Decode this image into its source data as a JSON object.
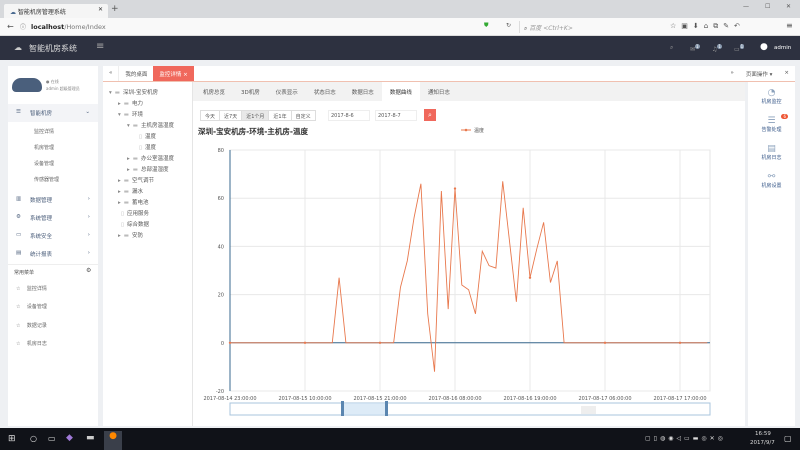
{
  "browser": {
    "tab_title": "智能机房管理系统",
    "url_host": "localhost",
    "url_path": "/Home/Index",
    "search_placeholder": "百度 <Ctrl+K>"
  },
  "header": {
    "app_title": "智能机房系统",
    "user": "admin",
    "badges": [
      "1",
      "1",
      "1"
    ]
  },
  "sidebar": {
    "profile": {
      "status": "● 在线",
      "name": "admin 超级管理员"
    },
    "groups": [
      {
        "label": "智能机房",
        "expanded": true,
        "children": [
          "监控详情",
          "机房管理",
          "设备管理",
          "传感器管理"
        ]
      },
      {
        "label": "数据管理"
      },
      {
        "label": "系统管理"
      },
      {
        "label": "系统安全"
      },
      {
        "label": "统计报表"
      }
    ],
    "favorites_title": "常用菜单",
    "favorites": [
      "监控详情",
      "设备管理",
      "数据记录",
      "机房日志"
    ]
  },
  "page_tabs": {
    "items": [
      "我的桌面",
      "监控详情"
    ],
    "active": 1,
    "page_ops": "页面操作"
  },
  "tree": [
    {
      "label": "深圳-宝安机房",
      "level": 0,
      "type": "folder-open"
    },
    {
      "label": "电力",
      "level": 1,
      "type": "folder"
    },
    {
      "label": "环境",
      "level": 1,
      "type": "folder-open"
    },
    {
      "label": "主机房温湿度",
      "level": 2,
      "type": "folder-open"
    },
    {
      "label": "温度",
      "level": 3,
      "type": "file"
    },
    {
      "label": "湿度",
      "level": 3,
      "type": "file"
    },
    {
      "label": "办公室温湿度",
      "level": 2,
      "type": "folder"
    },
    {
      "label": "总部温湿度",
      "level": 2,
      "type": "folder"
    },
    {
      "label": "空气调节",
      "level": 1,
      "type": "folder"
    },
    {
      "label": "漏水",
      "level": 1,
      "type": "folder"
    },
    {
      "label": "蓄电池",
      "level": 1,
      "type": "folder"
    },
    {
      "label": "应用服务",
      "level": 1,
      "type": "file"
    },
    {
      "label": "综合数据",
      "level": 1,
      "type": "file"
    },
    {
      "label": "安防",
      "level": 1,
      "type": "folder"
    }
  ],
  "sub_tabs": {
    "items": [
      "机房总览",
      "3D机房",
      "仪表显示",
      "状态日志",
      "数据日志",
      "数据曲线",
      "通知日志"
    ],
    "active": 5
  },
  "filters": {
    "ranges": [
      "今天",
      "近7天",
      "近1个月",
      "近1年",
      "自定义"
    ],
    "active": 2,
    "start_date": "2017-8-6",
    "end_date": "2017-8-7"
  },
  "right_panel": [
    {
      "label": "机房监控",
      "icon": "pie-chart-icon"
    },
    {
      "label": "告警处理",
      "icon": "list-icon",
      "badge": "6"
    },
    {
      "label": "机房日志",
      "icon": "database-icon"
    },
    {
      "label": "机房设置",
      "icon": "share-icon"
    }
  ],
  "colors": {
    "accent": "#f0685c",
    "line": "#e8784d",
    "header": "#2d3140",
    "axis": "#3a6a8f"
  },
  "chart_data": {
    "type": "line",
    "title": "深圳-宝安机房-环境-主机房-温度",
    "legend": "温度",
    "legend_position": "top-right",
    "ylim": [
      -20,
      80
    ],
    "yticks": [
      -20,
      0,
      20,
      40,
      60,
      80
    ],
    "grid": true,
    "start": "2017-08-14 23:00:00",
    "interval": "1 hour",
    "xtick_labels": [
      "2017-08-14 23:00:00",
      "2017-08-15 10:00:00",
      "2017-08-15 21:00:00",
      "2017-08-16 08:00:00",
      "2017-08-16 19:00:00",
      "2017-08-17 06:00:00",
      "2017-08-17 17:00:00"
    ],
    "values": [
      0,
      0,
      0,
      0,
      0,
      0,
      0,
      0,
      0,
      0,
      0,
      0,
      0,
      0,
      0,
      0,
      27,
      0,
      0,
      0,
      0,
      0,
      0,
      0,
      0,
      23,
      34,
      52,
      66,
      12,
      -12,
      63,
      14,
      64,
      24,
      22,
      12,
      38,
      32,
      31,
      67,
      42,
      17,
      56,
      27,
      39,
      50,
      25,
      34,
      0,
      0,
      0,
      0,
      0,
      0,
      0,
      0,
      0,
      0,
      0,
      0,
      0,
      0,
      0,
      0,
      0,
      0,
      0,
      0,
      0,
      0
    ],
    "zoom_slider": true
  },
  "taskbar": {
    "time": "16:59",
    "date": "2017/9/7"
  }
}
